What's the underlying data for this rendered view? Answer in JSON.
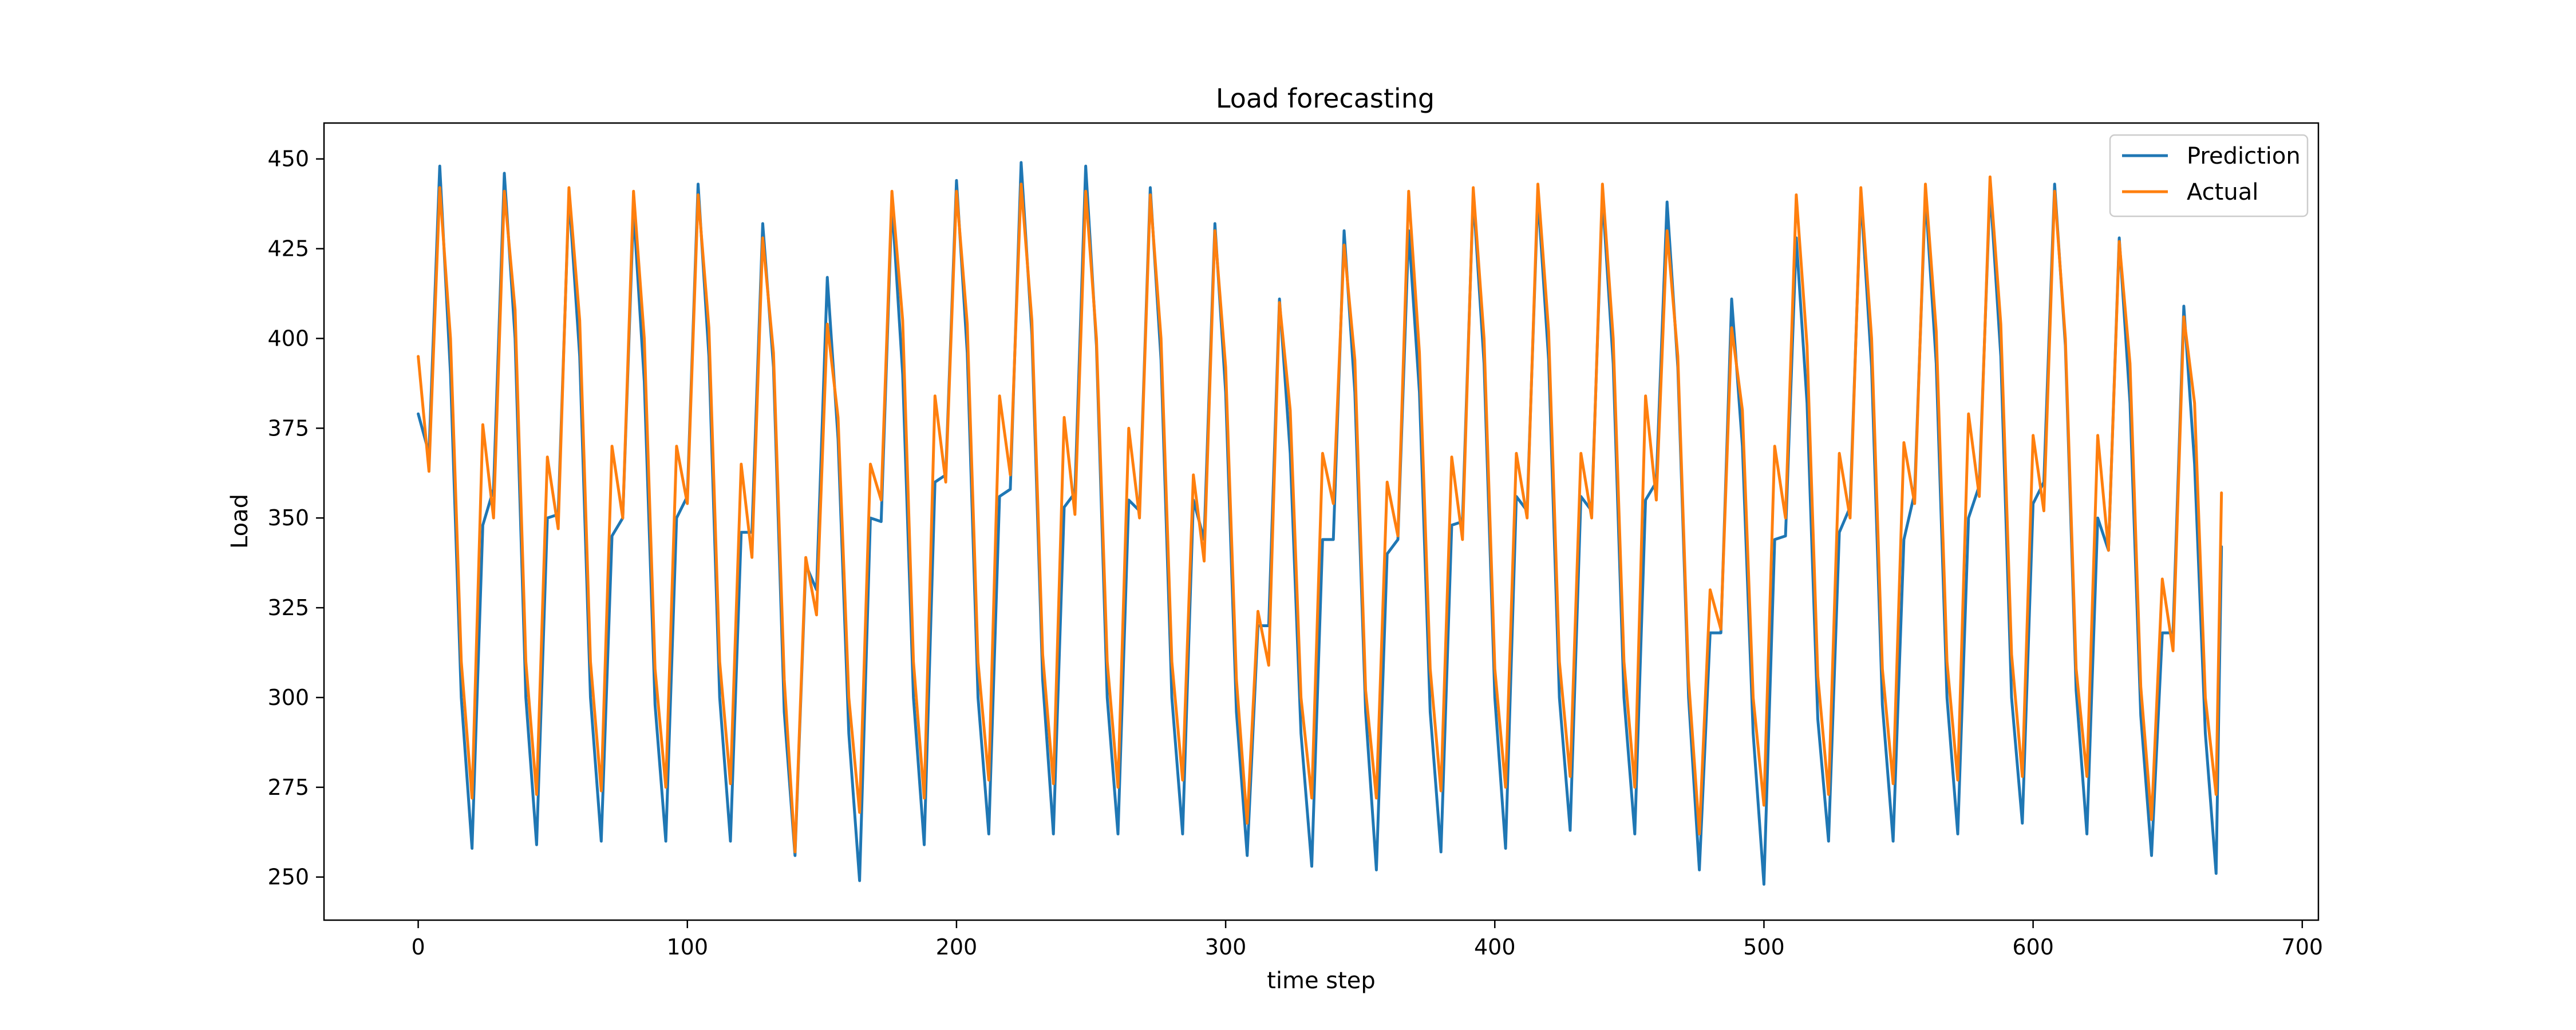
{
  "chart_data": {
    "type": "line",
    "title": "Load forecasting",
    "xlabel": "time step",
    "ylabel": "Load",
    "xlim": [
      -35,
      706
    ],
    "ylim": [
      238,
      460
    ],
    "xticks": [
      0,
      100,
      200,
      300,
      400,
      500,
      600,
      700
    ],
    "yticks": [
      250,
      275,
      300,
      325,
      350,
      375,
      400,
      425,
      450
    ],
    "grid": false,
    "legend": "top-right",
    "series": [
      {
        "name": "Prediction",
        "color": "#1f77b4",
        "x": [
          0,
          4,
          8,
          12,
          16,
          20,
          24,
          28,
          32,
          36,
          40,
          44,
          48,
          52,
          56,
          60,
          64,
          68,
          72,
          76,
          80,
          84,
          88,
          92,
          96,
          100,
          104,
          108,
          112,
          116,
          120,
          124,
          128,
          132,
          136,
          140,
          144,
          148,
          152,
          156,
          160,
          164,
          168,
          172,
          176,
          180,
          184,
          188,
          192,
          196,
          200,
          204,
          208,
          212,
          216,
          220,
          224,
          228,
          232,
          236,
          240,
          244,
          248,
          252,
          256,
          260,
          264,
          268,
          272,
          276,
          280,
          284,
          288,
          292,
          296,
          300,
          304,
          308,
          312,
          316,
          320,
          324,
          328,
          332,
          336,
          340,
          344,
          348,
          352,
          356,
          360,
          364,
          368,
          372,
          376,
          380,
          384,
          388,
          392,
          396,
          400,
          404,
          408,
          412,
          416,
          420,
          424,
          428,
          432,
          436,
          440,
          444,
          448,
          452,
          456,
          460,
          464,
          468,
          472,
          476,
          480,
          484,
          488,
          492,
          496,
          500,
          504,
          508,
          512,
          516,
          520,
          524,
          528,
          532,
          536,
          540,
          544,
          548,
          552,
          556,
          560,
          564,
          568,
          572,
          576,
          580,
          584,
          588,
          592,
          596,
          600,
          604,
          608,
          612,
          616,
          620,
          624,
          628,
          632,
          636,
          640,
          644,
          648,
          652,
          656,
          660,
          664,
          668,
          670
        ],
        "values": [
          379,
          368,
          448,
          390,
          300,
          258,
          348,
          358,
          446,
          400,
          300,
          259,
          350,
          351,
          440,
          395,
          300,
          260,
          345,
          350,
          436,
          388,
          298,
          260,
          350,
          356,
          443,
          395,
          300,
          260,
          346,
          346,
          432,
          392,
          296,
          256,
          337,
          330,
          417,
          372,
          290,
          249,
          350,
          349,
          438,
          390,
          300,
          259,
          360,
          362,
          444,
          396,
          300,
          262,
          356,
          358,
          449,
          401,
          305,
          262,
          353,
          357,
          448,
          398,
          300,
          262,
          355,
          352,
          442,
          394,
          300,
          262,
          355,
          344,
          432,
          385,
          296,
          256,
          320,
          320,
          411,
          368,
          290,
          253,
          344,
          344,
          430,
          385,
          296,
          252,
          340,
          344,
          430,
          385,
          296,
          257,
          348,
          349,
          440,
          393,
          300,
          258,
          356,
          352,
          440,
          394,
          300,
          263,
          356,
          352,
          440,
          393,
          300,
          262,
          355,
          360,
          438,
          392,
          300,
          252,
          318,
          318,
          411,
          370,
          290,
          248,
          344,
          345,
          428,
          382,
          294,
          260,
          346,
          353,
          440,
          392,
          298,
          260,
          344,
          357,
          440,
          393,
          300,
          262,
          350,
          359,
          442,
          395,
          300,
          265,
          354,
          360,
          443,
          398,
          302,
          262,
          350,
          341,
          428,
          382,
          295,
          256,
          318,
          318,
          409,
          365,
          290,
          251,
          342
        ]
      },
      {
        "name": "Actual",
        "color": "#ff7f0e",
        "x": [
          0,
          4,
          8,
          12,
          16,
          20,
          24,
          28,
          32,
          36,
          40,
          44,
          48,
          52,
          56,
          60,
          64,
          68,
          72,
          76,
          80,
          84,
          88,
          92,
          96,
          100,
          104,
          108,
          112,
          116,
          120,
          124,
          128,
          132,
          136,
          140,
          144,
          148,
          152,
          156,
          160,
          164,
          168,
          172,
          176,
          180,
          184,
          188,
          192,
          196,
          200,
          204,
          208,
          212,
          216,
          220,
          224,
          228,
          232,
          236,
          240,
          244,
          248,
          252,
          256,
          260,
          264,
          268,
          272,
          276,
          280,
          284,
          288,
          292,
          296,
          300,
          304,
          308,
          312,
          316,
          320,
          324,
          328,
          332,
          336,
          340,
          344,
          348,
          352,
          356,
          360,
          364,
          368,
          372,
          376,
          380,
          384,
          388,
          392,
          396,
          400,
          404,
          408,
          412,
          416,
          420,
          424,
          428,
          432,
          436,
          440,
          444,
          448,
          452,
          456,
          460,
          464,
          468,
          472,
          476,
          480,
          484,
          488,
          492,
          496,
          500,
          504,
          508,
          512,
          516,
          520,
          524,
          528,
          532,
          536,
          540,
          544,
          548,
          552,
          556,
          560,
          564,
          568,
          572,
          576,
          580,
          584,
          588,
          592,
          596,
          600,
          604,
          608,
          612,
          616,
          620,
          624,
          628,
          632,
          636,
          640,
          644,
          648,
          652,
          656,
          660,
          664,
          668,
          670
        ],
        "values": [
          395,
          363,
          442,
          400,
          310,
          272,
          376,
          350,
          441,
          408,
          310,
          273,
          367,
          347,
          442,
          405,
          310,
          274,
          370,
          350,
          441,
          400,
          308,
          275,
          370,
          354,
          440,
          403,
          310,
          276,
          365,
          339,
          428,
          396,
          305,
          257,
          339,
          323,
          404,
          378,
          300,
          268,
          365,
          355,
          441,
          405,
          310,
          272,
          384,
          360,
          441,
          404,
          310,
          277,
          384,
          362,
          443,
          405,
          312,
          276,
          378,
          351,
          441,
          400,
          310,
          275,
          375,
          350,
          440,
          400,
          310,
          277,
          362,
          338,
          430,
          392,
          305,
          265,
          324,
          309,
          410,
          380,
          300,
          272,
          368,
          354,
          426,
          394,
          302,
          272,
          360,
          345,
          441,
          396,
          308,
          274,
          367,
          344,
          442,
          400,
          308,
          275,
          368,
          350,
          443,
          402,
          310,
          278,
          368,
          350,
          443,
          400,
          310,
          275,
          384,
          355,
          430,
          395,
          305,
          262,
          330,
          319,
          403,
          380,
          300,
          270,
          370,
          350,
          440,
          398,
          306,
          273,
          368,
          350,
          442,
          400,
          308,
          276,
          371,
          354,
          443,
          402,
          310,
          277,
          379,
          356,
          445,
          404,
          312,
          278,
          373,
          352,
          441,
          400,
          308,
          278,
          373,
          341,
          427,
          393,
          303,
          266,
          333,
          313,
          406,
          382,
          300,
          273,
          357
        ]
      }
    ]
  }
}
